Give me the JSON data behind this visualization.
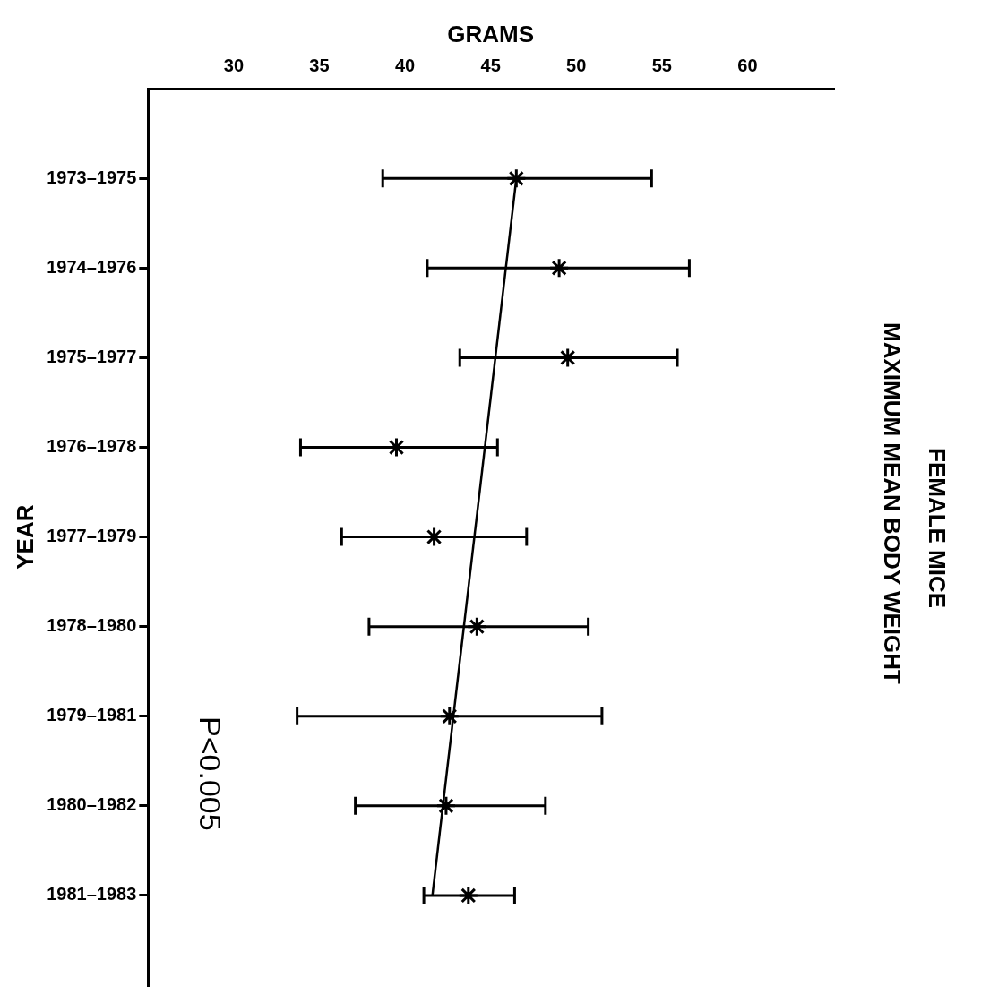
{
  "chart_data": {
    "type": "scatter",
    "orientation": "horizontal",
    "title": "FEMALE MICE",
    "subtitle": "MAXIMUM MEAN BODY WEIGHT",
    "xlabel": "GRAMS",
    "ylabel": "YEAR",
    "categories": [
      "1973–1975",
      "1974–1976",
      "1975–1977",
      "1976–1978",
      "1977–1979",
      "1978–1980",
      "1979–1981",
      "1980–1982",
      "1981–1983"
    ],
    "xlim": [
      25,
      65
    ],
    "xticks": [
      30,
      35,
      40,
      45,
      50,
      55,
      60
    ],
    "grid": false,
    "legend": false,
    "series": [
      {
        "type": "scatter",
        "color": "#000000",
        "marker": "cross",
        "values": [
          46.5,
          49.0,
          49.5,
          39.5,
          41.7,
          44.2,
          42.6,
          42.4,
          43.7
        ],
        "errors": [
          [
            38.7,
            54.4
          ],
          [
            41.3,
            56.6
          ],
          [
            43.2,
            55.9
          ],
          [
            33.9,
            45.4
          ],
          [
            36.3,
            47.1
          ],
          [
            37.9,
            50.7
          ],
          [
            33.7,
            51.5
          ],
          [
            37.1,
            48.2
          ],
          [
            41.1,
            46.4
          ]
        ]
      },
      {
        "type": "line",
        "color": "#000000",
        "values": [
          46.5,
          null,
          null,
          null,
          null,
          null,
          null,
          null,
          41.6
        ]
      }
    ],
    "annotations": [
      "P<0.005"
    ]
  }
}
